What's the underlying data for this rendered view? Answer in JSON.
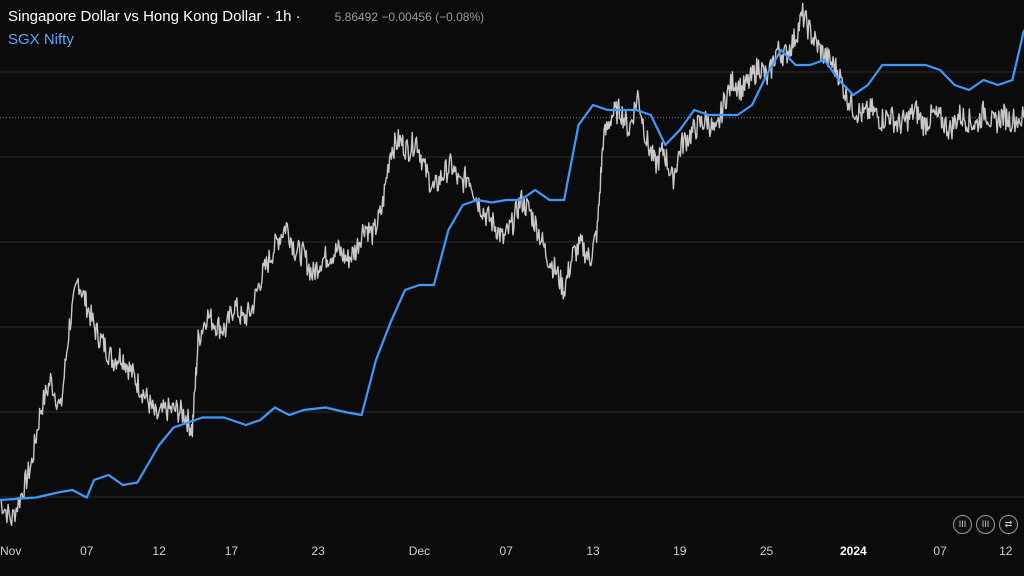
{
  "header": {
    "title": "Singapore Dollar vs Hong Kong Dollar · 1h ·",
    "quote": "5.86492  −0.00456 (−0.08%)",
    "compare_series": "SGX Nifty"
  },
  "toolbar": {
    "buttons": [
      "III",
      "III",
      "⇄"
    ]
  },
  "colors": {
    "background": "#0b0b0b",
    "main_series": "#c8c8c8",
    "compare_series": "#3d9bff",
    "grid": "#2e2e2e"
  },
  "chart_data": {
    "type": "line",
    "grid": true,
    "legend": "top-left",
    "x_ticks": [
      {
        "label": "Nov",
        "t": 0
      },
      {
        "label": "07",
        "t": 6
      },
      {
        "label": "12",
        "t": 11
      },
      {
        "label": "17",
        "t": 16
      },
      {
        "label": "23",
        "t": 22
      },
      {
        "label": "Dec",
        "t": 29
      },
      {
        "label": "07",
        "t": 35
      },
      {
        "label": "13",
        "t": 41
      },
      {
        "label": "19",
        "t": 47
      },
      {
        "label": "25",
        "t": 53
      },
      {
        "label": "2024",
        "t": 59,
        "bold": true
      },
      {
        "label": "07",
        "t": 65
      },
      {
        "label": "12",
        "t": 70
      }
    ],
    "x_range": [
      0,
      70.8
    ],
    "y_range": [
      5.7,
      5.9
    ],
    "dotted_level": 5.8649,
    "series": [
      {
        "name": "Singapore Dollar vs Hong Kong Dollar",
        "points": [
          [
            0,
            5.712
          ],
          [
            0.8,
            5.704
          ],
          [
            1.6,
            5.716
          ],
          [
            2.2,
            5.727
          ],
          [
            2.8,
            5.748
          ],
          [
            3.5,
            5.76
          ],
          [
            4.2,
            5.748
          ],
          [
            4.8,
            5.782
          ],
          [
            5.4,
            5.8
          ],
          [
            6.0,
            5.79
          ],
          [
            6.6,
            5.78
          ],
          [
            7.2,
            5.774
          ],
          [
            7.8,
            5.768
          ],
          [
            8.4,
            5.77
          ],
          [
            9.0,
            5.764
          ],
          [
            9.6,
            5.758
          ],
          [
            10.2,
            5.752
          ],
          [
            10.8,
            5.745
          ],
          [
            11.5,
            5.748
          ],
          [
            12.2,
            5.748
          ],
          [
            12.8,
            5.746
          ],
          [
            13.3,
            5.74
          ],
          [
            13.7,
            5.776
          ],
          [
            14.3,
            5.786
          ],
          [
            15.0,
            5.782
          ],
          [
            15.6,
            5.78
          ],
          [
            16.2,
            5.79
          ],
          [
            16.8,
            5.784
          ],
          [
            17.4,
            5.788
          ],
          [
            18.0,
            5.8
          ],
          [
            18.6,
            5.808
          ],
          [
            19.2,
            5.816
          ],
          [
            19.8,
            5.822
          ],
          [
            20.4,
            5.812
          ],
          [
            21.0,
            5.81
          ],
          [
            21.6,
            5.802
          ],
          [
            22.2,
            5.808
          ],
          [
            22.8,
            5.81
          ],
          [
            23.4,
            5.812
          ],
          [
            24.0,
            5.808
          ],
          [
            24.6,
            5.812
          ],
          [
            25.2,
            5.822
          ],
          [
            25.8,
            5.818
          ],
          [
            26.4,
            5.828
          ],
          [
            27.0,
            5.852
          ],
          [
            27.6,
            5.856
          ],
          [
            28.2,
            5.852
          ],
          [
            28.8,
            5.856
          ],
          [
            29.4,
            5.844
          ],
          [
            30.0,
            5.836
          ],
          [
            30.6,
            5.842
          ],
          [
            31.2,
            5.846
          ],
          [
            31.8,
            5.838
          ],
          [
            32.4,
            5.842
          ],
          [
            33.0,
            5.832
          ],
          [
            33.6,
            5.826
          ],
          [
            34.2,
            5.822
          ],
          [
            34.8,
            5.816
          ],
          [
            35.4,
            5.822
          ],
          [
            36.0,
            5.832
          ],
          [
            36.6,
            5.828
          ],
          [
            37.2,
            5.82
          ],
          [
            37.8,
            5.81
          ],
          [
            38.4,
            5.804
          ],
          [
            39.0,
            5.796
          ],
          [
            39.6,
            5.81
          ],
          [
            40.2,
            5.814
          ],
          [
            40.8,
            5.808
          ],
          [
            41.3,
            5.82
          ],
          [
            41.7,
            5.856
          ],
          [
            42.3,
            5.866
          ],
          [
            42.9,
            5.868
          ],
          [
            43.5,
            5.86
          ],
          [
            44.1,
            5.874
          ],
          [
            44.7,
            5.856
          ],
          [
            45.3,
            5.846
          ],
          [
            45.9,
            5.852
          ],
          [
            46.5,
            5.84
          ],
          [
            47.1,
            5.854
          ],
          [
            47.7,
            5.858
          ],
          [
            48.3,
            5.862
          ],
          [
            48.9,
            5.864
          ],
          [
            49.5,
            5.858
          ],
          [
            50.1,
            5.872
          ],
          [
            50.7,
            5.88
          ],
          [
            51.3,
            5.876
          ],
          [
            51.9,
            5.88
          ],
          [
            52.5,
            5.886
          ],
          [
            53.1,
            5.88
          ],
          [
            53.7,
            5.892
          ],
          [
            54.3,
            5.89
          ],
          [
            54.9,
            5.896
          ],
          [
            55.5,
            5.906
          ],
          [
            56.1,
            5.898
          ],
          [
            56.7,
            5.892
          ],
          [
            57.3,
            5.888
          ],
          [
            57.9,
            5.884
          ],
          [
            58.5,
            5.874
          ],
          [
            59.1,
            5.868
          ],
          [
            59.7,
            5.866
          ],
          [
            60.3,
            5.868
          ],
          [
            60.9,
            5.864
          ],
          [
            61.5,
            5.866
          ],
          [
            62.1,
            5.862
          ],
          [
            62.7,
            5.864
          ],
          [
            63.3,
            5.868
          ],
          [
            63.9,
            5.862
          ],
          [
            64.5,
            5.866
          ],
          [
            65.1,
            5.864
          ],
          [
            65.7,
            5.86
          ],
          [
            66.3,
            5.866
          ],
          [
            66.9,
            5.864
          ],
          [
            67.5,
            5.862
          ],
          [
            68.1,
            5.868
          ],
          [
            68.7,
            5.862
          ],
          [
            69.3,
            5.866
          ],
          [
            69.9,
            5.864
          ],
          [
            70.8,
            5.865
          ]
        ]
      },
      {
        "name": "SGX Nifty",
        "points": [
          [
            0,
            5.712
          ],
          [
            2.5,
            5.713
          ],
          [
            4.0,
            5.715
          ],
          [
            5.0,
            5.716
          ],
          [
            6.0,
            5.713
          ],
          [
            6.5,
            5.72
          ],
          [
            7.5,
            5.722
          ],
          [
            8.5,
            5.718
          ],
          [
            9.5,
            5.719
          ],
          [
            11.0,
            5.734
          ],
          [
            12.0,
            5.741
          ],
          [
            13.0,
            5.743
          ],
          [
            14.0,
            5.745
          ],
          [
            15.5,
            5.745
          ],
          [
            17.0,
            5.742
          ],
          [
            18.0,
            5.744
          ],
          [
            19.0,
            5.749
          ],
          [
            20.0,
            5.746
          ],
          [
            21.0,
            5.748
          ],
          [
            22.5,
            5.749
          ],
          [
            24.0,
            5.747
          ],
          [
            25.0,
            5.746
          ],
          [
            26.0,
            5.768
          ],
          [
            27.0,
            5.783
          ],
          [
            28.0,
            5.796
          ],
          [
            29.0,
            5.798
          ],
          [
            30.0,
            5.798
          ],
          [
            31.0,
            5.82
          ],
          [
            32.0,
            5.83
          ],
          [
            33.0,
            5.832
          ],
          [
            34.0,
            5.831
          ],
          [
            35.0,
            5.832
          ],
          [
            36.0,
            5.832
          ],
          [
            37.0,
            5.836
          ],
          [
            38.0,
            5.832
          ],
          [
            39.0,
            5.832
          ],
          [
            40.0,
            5.862
          ],
          [
            41.0,
            5.87
          ],
          [
            42.0,
            5.868
          ],
          [
            43.0,
            5.868
          ],
          [
            44.0,
            5.868
          ],
          [
            45.0,
            5.866
          ],
          [
            46.0,
            5.854
          ],
          [
            47.0,
            5.86
          ],
          [
            48.0,
            5.868
          ],
          [
            49.0,
            5.866
          ],
          [
            50.0,
            5.866
          ],
          [
            51.0,
            5.866
          ],
          [
            52.0,
            5.87
          ],
          [
            53.0,
            5.882
          ],
          [
            54.0,
            5.892
          ],
          [
            55.0,
            5.886
          ],
          [
            56.0,
            5.886
          ],
          [
            57.0,
            5.888
          ],
          [
            58.0,
            5.88
          ],
          [
            59.0,
            5.874
          ],
          [
            60.0,
            5.878
          ],
          [
            61.0,
            5.886
          ],
          [
            62.0,
            5.886
          ],
          [
            63.0,
            5.886
          ],
          [
            64.0,
            5.886
          ],
          [
            65.0,
            5.884
          ],
          [
            66.0,
            5.878
          ],
          [
            67.0,
            5.876
          ],
          [
            68.0,
            5.88
          ],
          [
            69.0,
            5.878
          ],
          [
            70.0,
            5.88
          ],
          [
            70.8,
            5.9
          ]
        ]
      }
    ]
  }
}
